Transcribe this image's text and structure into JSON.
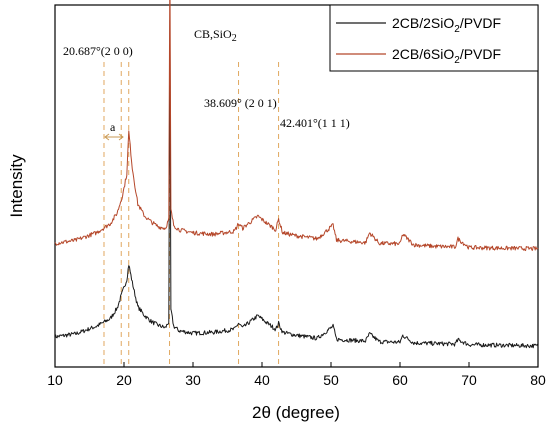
{
  "chart_data": {
    "type": "line",
    "title": "",
    "xlabel": "2θ (degree)",
    "ylabel": "Intensity",
    "xlim": [
      10,
      80
    ],
    "x_ticks": [
      "10",
      "20",
      "30",
      "40",
      "50",
      "60",
      "70",
      "80"
    ],
    "grid": false,
    "legend_position": "top-right",
    "legend": [
      {
        "name_main": "2CB/2SiO",
        "name_sub": "2",
        "name_tail": "/PVDF",
        "color": "#1a1a1a"
      },
      {
        "name_main": "2CB/6SiO",
        "name_sub": "2",
        "name_tail": "/PVDF",
        "color": "#b5472a"
      }
    ],
    "series": [
      {
        "name": "2CB/2SiO2/PVDF",
        "color": "#1a1a1a",
        "x": [
          10,
          13,
          16,
          18,
          19,
          19.8,
          20.4,
          20.7,
          21.2,
          22,
          23,
          24,
          25,
          26,
          26.5,
          26.65,
          26.8,
          27.2,
          28,
          30,
          33,
          36,
          36.6,
          37.2,
          38,
          39.4,
          40.5,
          42,
          42.4,
          43,
          45,
          48,
          50.3,
          50.8,
          52,
          55,
          55.6,
          57,
          60,
          60.4,
          62,
          65,
          68,
          68.4,
          70,
          75,
          80
        ],
        "y": [
          1.0,
          1.1,
          1.35,
          1.6,
          1.95,
          2.5,
          2.9,
          3.4,
          2.8,
          2.0,
          1.7,
          1.5,
          1.38,
          1.3,
          1.5,
          11.5,
          1.9,
          1.35,
          1.2,
          1.12,
          1.15,
          1.25,
          1.45,
          1.3,
          1.45,
          1.7,
          1.5,
          1.25,
          1.45,
          1.15,
          1.05,
          0.95,
          1.35,
          0.92,
          0.9,
          0.86,
          1.1,
          0.84,
          0.82,
          1.05,
          0.8,
          0.78,
          0.76,
          0.9,
          0.74,
          0.72,
          0.7
        ]
      },
      {
        "name": "2CB/6SiO2/PVDF",
        "color": "#b5472a",
        "x": [
          10,
          13,
          16,
          18,
          19,
          19.8,
          20.4,
          20.7,
          21.2,
          22,
          23,
          24,
          25,
          26,
          26.5,
          26.65,
          26.8,
          27.2,
          28,
          30,
          33,
          36,
          36.6,
          37.2,
          38,
          39.4,
          40.5,
          42,
          42.4,
          43,
          45,
          48,
          50.3,
          50.8,
          52,
          55,
          55.6,
          57,
          60,
          60.4,
          62,
          65,
          68,
          68.4,
          70,
          75,
          80
        ],
        "y": [
          4.1,
          4.2,
          4.45,
          4.75,
          5.1,
          5.7,
          6.4,
          7.8,
          6.6,
          5.4,
          5.0,
          4.8,
          4.65,
          4.6,
          4.9,
          13.5,
          5.2,
          4.7,
          4.55,
          4.45,
          4.4,
          4.5,
          4.75,
          4.6,
          4.75,
          5.0,
          4.8,
          4.55,
          4.9,
          4.45,
          4.35,
          4.25,
          4.7,
          4.2,
          4.18,
          4.12,
          4.45,
          4.1,
          4.08,
          4.4,
          4.05,
          4.0,
          3.98,
          4.25,
          3.96,
          3.94,
          3.92
        ]
      }
    ],
    "reference_lines": [
      17.1,
      19.6,
      20.687,
      26.6,
      36.6,
      42.401
    ],
    "annotations": {
      "peak_200": "20.687°(2 0 0)",
      "peak_201": "38.609° (2 0 1)",
      "peak_111": "42.401°(1 1 1)",
      "cb_sio2_main": "CB,SiO",
      "cb_sio2_sub": "2",
      "bracket_label": "a"
    }
  }
}
